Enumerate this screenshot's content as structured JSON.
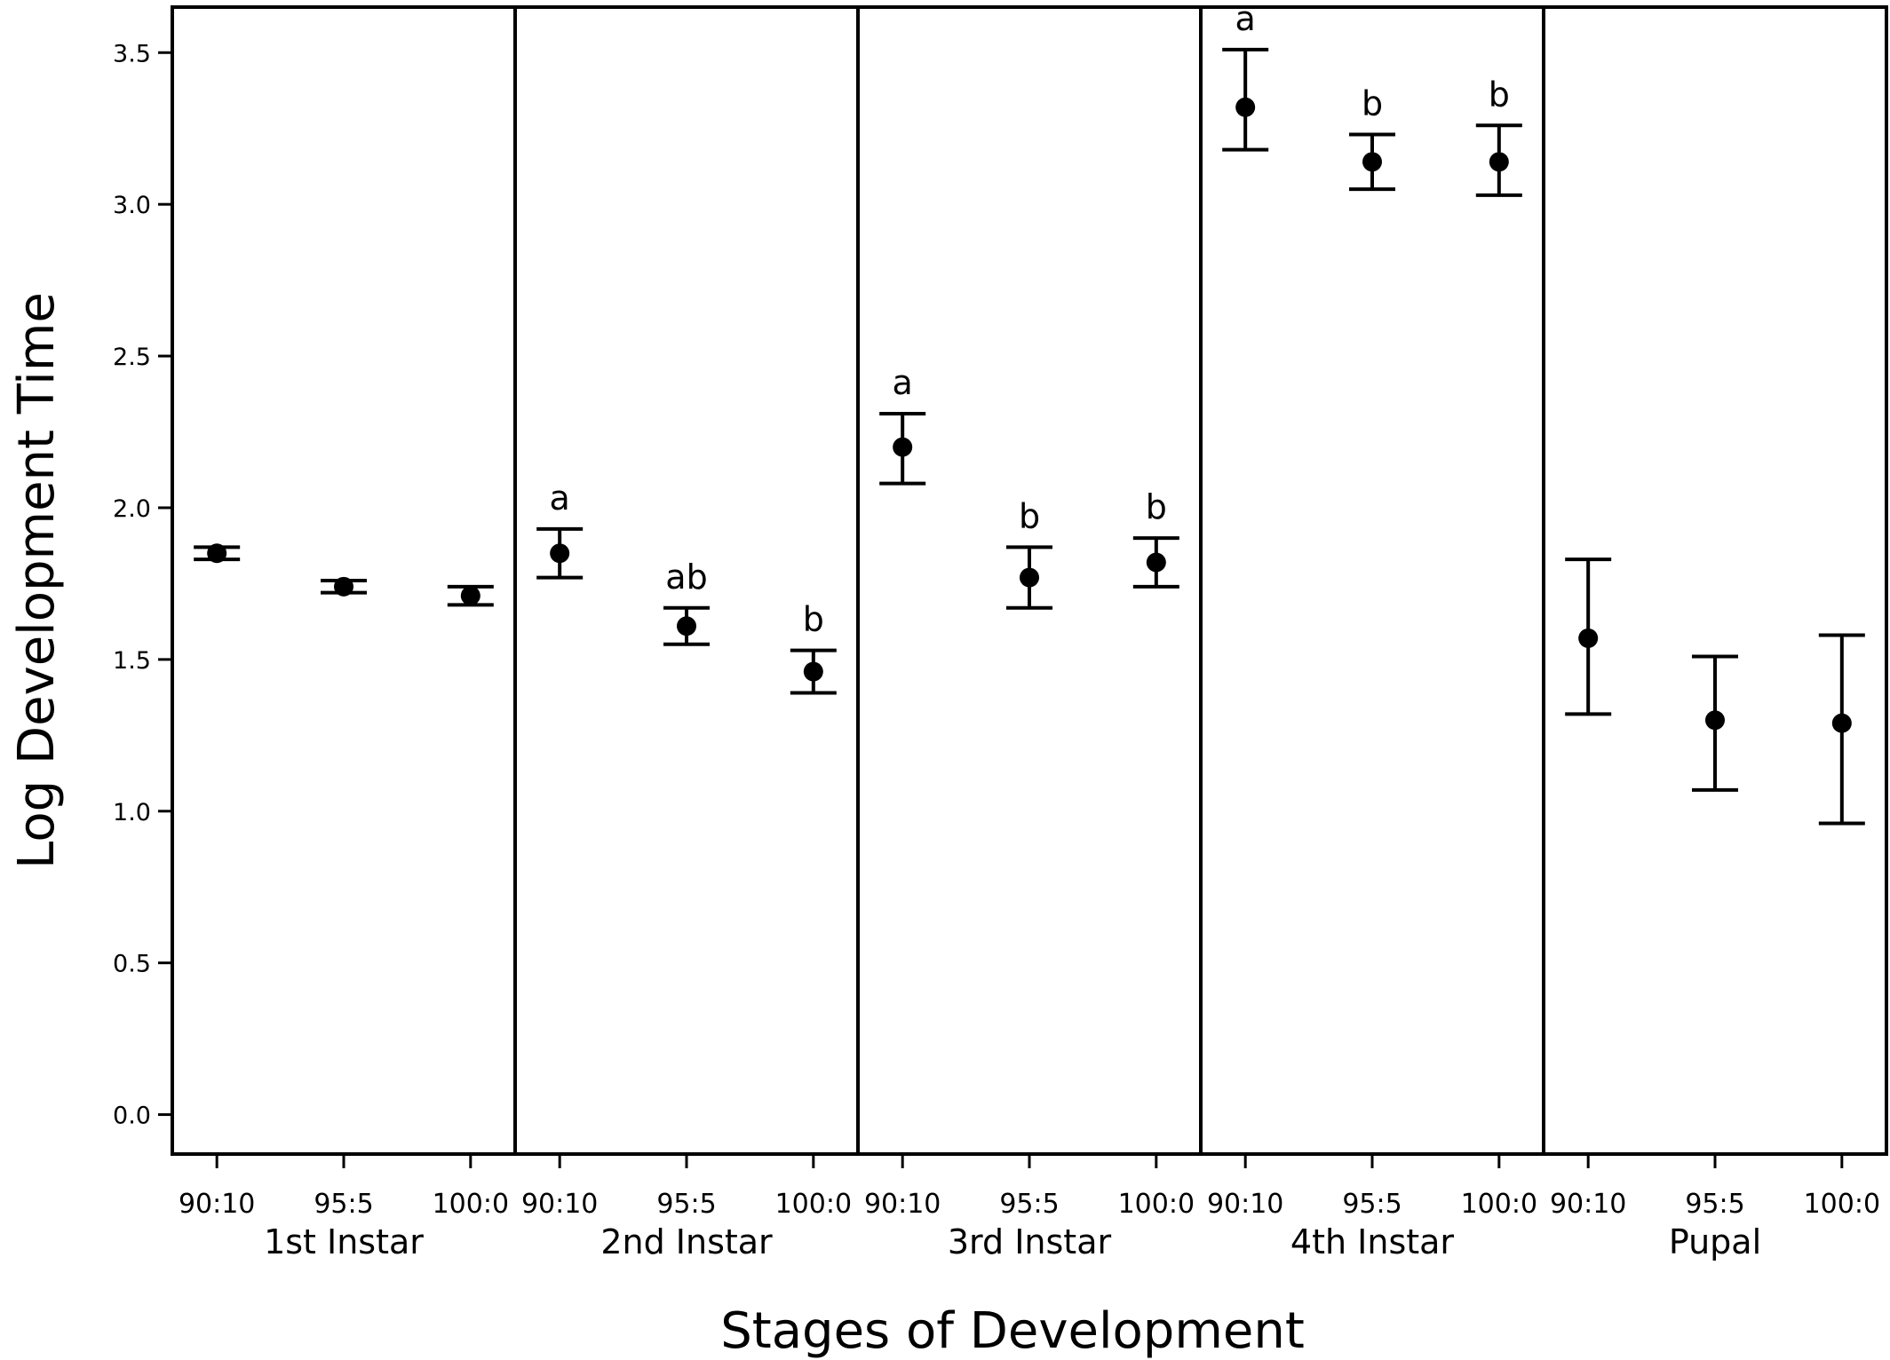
{
  "chart_data": {
    "type": "scatter",
    "xlabel": "Stages of Development",
    "ylabel": "Log Development Time",
    "ylim": [
      -0.13,
      3.65
    ],
    "yticks": [
      "0.0",
      "0.5",
      "1.0",
      "1.5",
      "2.0",
      "2.5",
      "3.0",
      "3.5"
    ],
    "grid": false,
    "legend": "none",
    "colors": {
      "marker": "#000000",
      "frame": "#000000",
      "background": "#ffffff"
    },
    "categories": [
      "90:10",
      "95:5",
      "100:0"
    ],
    "panels": [
      {
        "stage": "1st Instar",
        "points": [
          {
            "treatment": "90:10",
            "mean": 1.85,
            "lower": 1.83,
            "upper": 1.87,
            "letter": ""
          },
          {
            "treatment": "95:5",
            "mean": 1.74,
            "lower": 1.72,
            "upper": 1.76,
            "letter": ""
          },
          {
            "treatment": "100:0",
            "mean": 1.71,
            "lower": 1.68,
            "upper": 1.74,
            "letter": ""
          }
        ]
      },
      {
        "stage": "2nd Instar",
        "points": [
          {
            "treatment": "90:10",
            "mean": 1.85,
            "lower": 1.77,
            "upper": 1.93,
            "letter": "a"
          },
          {
            "treatment": "95:5",
            "mean": 1.61,
            "lower": 1.55,
            "upper": 1.67,
            "letter": "ab"
          },
          {
            "treatment": "100:0",
            "mean": 1.46,
            "lower": 1.39,
            "upper": 1.53,
            "letter": "b"
          }
        ]
      },
      {
        "stage": "3rd Instar",
        "points": [
          {
            "treatment": "90:10",
            "mean": 2.2,
            "lower": 2.08,
            "upper": 2.31,
            "letter": "a"
          },
          {
            "treatment": "95:5",
            "mean": 1.77,
            "lower": 1.67,
            "upper": 1.87,
            "letter": "b"
          },
          {
            "treatment": "100:0",
            "mean": 1.82,
            "lower": 1.74,
            "upper": 1.9,
            "letter": "b"
          }
        ]
      },
      {
        "stage": "4th Instar",
        "points": [
          {
            "treatment": "90:10",
            "mean": 3.32,
            "lower": 3.18,
            "upper": 3.51,
            "letter": "a"
          },
          {
            "treatment": "95:5",
            "mean": 3.14,
            "lower": 3.05,
            "upper": 3.23,
            "letter": "b"
          },
          {
            "treatment": "100:0",
            "mean": 3.14,
            "lower": 3.03,
            "upper": 3.26,
            "letter": "b"
          }
        ]
      },
      {
        "stage": "Pupal",
        "points": [
          {
            "treatment": "90:10",
            "mean": 1.57,
            "lower": 1.32,
            "upper": 1.83,
            "letter": ""
          },
          {
            "treatment": "95:5",
            "mean": 1.3,
            "lower": 1.07,
            "upper": 1.51,
            "letter": ""
          },
          {
            "treatment": "100:0",
            "mean": 1.29,
            "lower": 0.96,
            "upper": 1.58,
            "letter": ""
          }
        ]
      }
    ]
  }
}
